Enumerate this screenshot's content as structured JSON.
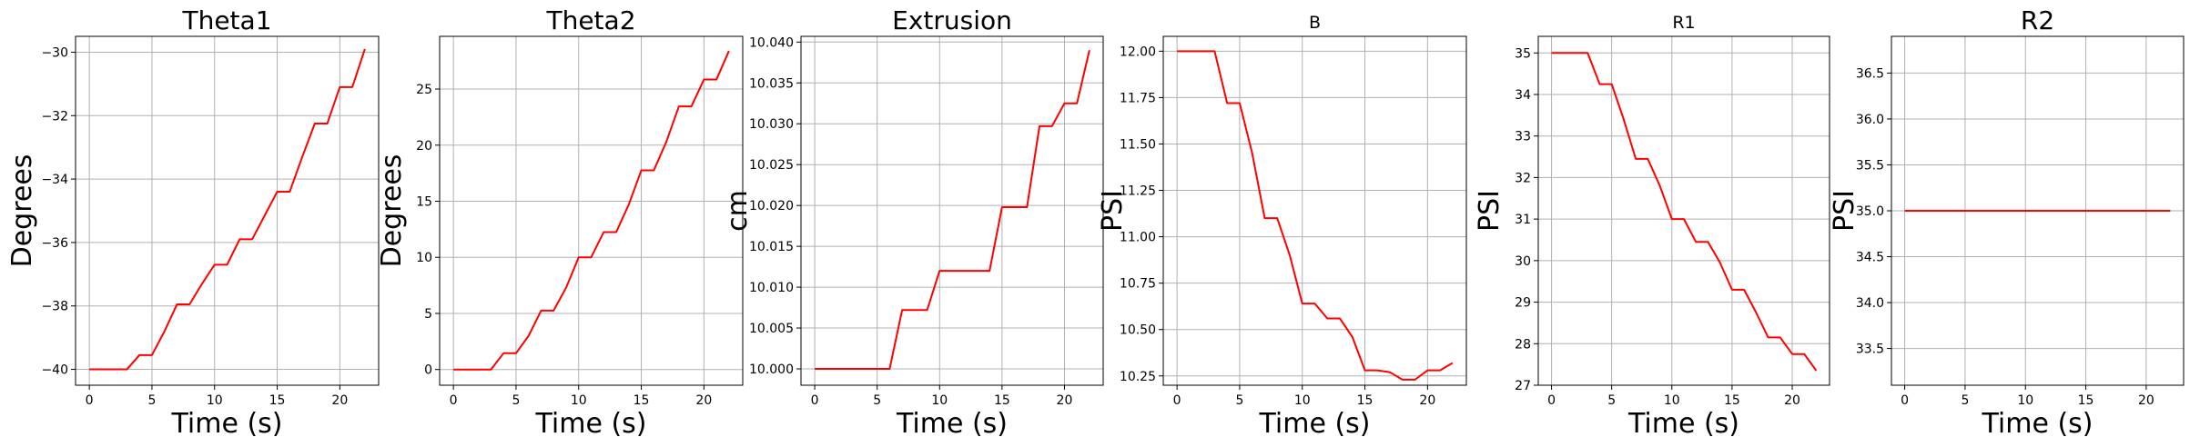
{
  "chart_data": [
    {
      "type": "line",
      "title": "Theta1",
      "title_size": "large",
      "xlabel": "Time (s)",
      "ylabel": "Degrees",
      "xlim": [
        -1.1,
        23.1
      ],
      "ylim": [
        -40.5,
        -29.5
      ],
      "x_ticks": [
        0,
        5,
        10,
        15,
        20
      ],
      "x_tick_labels": [
        "0",
        "5",
        "10",
        "15",
        "20"
      ],
      "y_ticks": [
        -40,
        -38,
        -36,
        -34,
        -32,
        -30
      ],
      "y_tick_labels": [
        "−40",
        "−38",
        "−36",
        "−34",
        "−32",
        "−30"
      ],
      "grid": true,
      "series": [
        {
          "color": "#ff0000",
          "x": [
            0,
            1,
            2,
            3,
            4,
            5,
            6,
            7,
            8,
            9,
            10,
            11,
            12,
            13,
            14,
            15,
            16,
            17,
            18,
            19,
            20,
            21,
            22
          ],
          "y": [
            -40,
            -40,
            -40,
            -40,
            -39.55,
            -39.55,
            -38.8,
            -37.95,
            -37.95,
            -37.3,
            -36.7,
            -36.7,
            -35.9,
            -35.9,
            -35.15,
            -34.4,
            -34.4,
            -33.3,
            -32.25,
            -32.25,
            -31.1,
            -31.1,
            -29.9
          ]
        }
      ]
    },
    {
      "type": "line",
      "title": "Theta2",
      "title_size": "large",
      "xlabel": "Time (s)",
      "ylabel": "Degrees",
      "xlim": [
        -1.1,
        23.1
      ],
      "ylim": [
        -1.4,
        29.7
      ],
      "x_ticks": [
        0,
        5,
        10,
        15,
        20
      ],
      "x_tick_labels": [
        "0",
        "5",
        "10",
        "15",
        "20"
      ],
      "y_ticks": [
        0,
        5,
        10,
        15,
        20,
        25
      ],
      "y_tick_labels": [
        "0",
        "5",
        "10",
        "15",
        "20",
        "25"
      ],
      "grid": true,
      "series": [
        {
          "color": "#ff0000",
          "x": [
            0,
            1,
            2,
            3,
            4,
            5,
            6,
            7,
            8,
            9,
            10,
            11,
            12,
            13,
            14,
            15,
            16,
            17,
            18,
            19,
            20,
            21,
            22
          ],
          "y": [
            0,
            0,
            0,
            0,
            1.45,
            1.45,
            3.0,
            5.25,
            5.25,
            7.3,
            10.0,
            10.0,
            12.25,
            12.25,
            14.7,
            17.75,
            17.75,
            20.3,
            23.45,
            23.45,
            25.85,
            25.85,
            28.4
          ]
        }
      ]
    },
    {
      "type": "line",
      "title": "Extrusion",
      "title_size": "large",
      "xlabel": "Time (s)",
      "ylabel": "cm",
      "xlim": [
        -1.1,
        23.1
      ],
      "ylim": [
        9.998,
        10.0407
      ],
      "x_ticks": [
        0,
        5,
        10,
        15,
        20
      ],
      "x_tick_labels": [
        "0",
        "5",
        "10",
        "15",
        "20"
      ],
      "y_ticks": [
        10.0,
        10.005,
        10.01,
        10.015,
        10.02,
        10.025,
        10.03,
        10.035,
        10.04
      ],
      "y_tick_labels": [
        "10.000",
        "10.005",
        "10.010",
        "10.015",
        "10.020",
        "10.025",
        "10.030",
        "10.035",
        "10.040"
      ],
      "grid": true,
      "series": [
        {
          "color": "#ff0000",
          "x": [
            0,
            1,
            2,
            3,
            4,
            5,
            6,
            7,
            8,
            9,
            10,
            11,
            12,
            13,
            14,
            15,
            16,
            17,
            18,
            19,
            20,
            21,
            22
          ],
          "y": [
            10.0,
            10.0,
            10.0,
            10.0,
            10.0,
            10.0,
            10.0,
            10.0072,
            10.0072,
            10.0072,
            10.012,
            10.012,
            10.012,
            10.012,
            10.012,
            10.0198,
            10.0198,
            10.0198,
            10.0297,
            10.0297,
            10.0325,
            10.0325,
            10.039
          ]
        }
      ]
    },
    {
      "type": "line",
      "title": "B",
      "title_size": "small",
      "xlabel": "Time (s)",
      "ylabel": "PSI",
      "xlim": [
        -1.1,
        23.1
      ],
      "ylim": [
        10.2,
        12.08
      ],
      "x_ticks": [
        0,
        5,
        10,
        15,
        20
      ],
      "x_tick_labels": [
        "0",
        "5",
        "10",
        "15",
        "20"
      ],
      "y_ticks": [
        10.25,
        10.5,
        10.75,
        11.0,
        11.25,
        11.5,
        11.75,
        12.0
      ],
      "y_tick_labels": [
        "10.25",
        "10.50",
        "10.75",
        "11.00",
        "11.25",
        "11.50",
        "11.75",
        "12.00"
      ],
      "grid": true,
      "series": [
        {
          "color": "#ff0000",
          "x": [
            0,
            1,
            2,
            3,
            4,
            5,
            6,
            7,
            8,
            9,
            10,
            11,
            12,
            13,
            14,
            15,
            16,
            17,
            18,
            19,
            20,
            21,
            22
          ],
          "y": [
            12.0,
            12.0,
            12.0,
            12.0,
            11.72,
            11.72,
            11.45,
            11.1,
            11.1,
            10.9,
            10.64,
            10.64,
            10.56,
            10.56,
            10.46,
            10.28,
            10.28,
            10.27,
            10.23,
            10.23,
            10.28,
            10.28,
            10.32
          ]
        }
      ]
    },
    {
      "type": "line",
      "title": "R1",
      "title_size": "small",
      "xlabel": "Time (s)",
      "ylabel": "PSI",
      "xlim": [
        -1.1,
        23.1
      ],
      "ylim": [
        27.0,
        35.4
      ],
      "x_ticks": [
        0,
        5,
        10,
        15,
        20
      ],
      "x_tick_labels": [
        "0",
        "5",
        "10",
        "15",
        "20"
      ],
      "y_ticks": [
        27,
        28,
        29,
        30,
        31,
        32,
        33,
        34,
        35
      ],
      "y_tick_labels": [
        "27",
        "28",
        "29",
        "30",
        "31",
        "32",
        "33",
        "34",
        "35"
      ],
      "grid": true,
      "series": [
        {
          "color": "#ff0000",
          "x": [
            0,
            1,
            2,
            3,
            4,
            5,
            6,
            7,
            8,
            9,
            10,
            11,
            12,
            13,
            14,
            15,
            16,
            17,
            18,
            19,
            20,
            21,
            22
          ],
          "y": [
            35.0,
            35.0,
            35.0,
            35.0,
            34.25,
            34.25,
            33.4,
            32.45,
            32.45,
            31.8,
            31.0,
            31.0,
            30.45,
            30.45,
            29.95,
            29.3,
            29.3,
            28.75,
            28.15,
            28.15,
            27.75,
            27.75,
            27.35
          ]
        }
      ]
    },
    {
      "type": "line",
      "title": "R2",
      "title_size": "large",
      "xlabel": "Time (s)",
      "ylabel": "PSI",
      "xlim": [
        -1.1,
        23.1
      ],
      "ylim": [
        33.1,
        36.9
      ],
      "x_ticks": [
        0,
        5,
        10,
        15,
        20
      ],
      "x_tick_labels": [
        "0",
        "5",
        "10",
        "15",
        "20"
      ],
      "y_ticks": [
        33.5,
        34.0,
        34.5,
        35.0,
        35.5,
        36.0,
        36.5
      ],
      "y_tick_labels": [
        "33.5",
        "34.0",
        "34.5",
        "35.0",
        "35.5",
        "36.0",
        "36.5"
      ],
      "grid": true,
      "series": [
        {
          "color": "#ff0000",
          "x": [
            0,
            1,
            2,
            3,
            4,
            5,
            6,
            7,
            8,
            9,
            10,
            11,
            12,
            13,
            14,
            15,
            16,
            17,
            18,
            19,
            20,
            21,
            22
          ],
          "y": [
            35.0,
            35.0,
            35.0,
            35.0,
            35.0,
            35.0,
            35.0,
            35.0,
            35.0,
            35.0,
            35.0,
            35.0,
            35.0,
            35.0,
            35.0,
            35.0,
            35.0,
            35.0,
            35.0,
            35.0,
            35.0,
            35.0,
            35.0
          ]
        }
      ]
    }
  ]
}
